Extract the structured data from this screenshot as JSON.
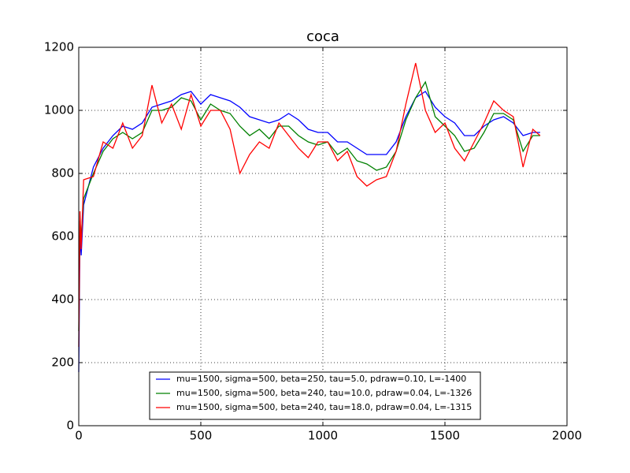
{
  "chart_data": {
    "type": "line",
    "title": "coca",
    "x": [
      0,
      5,
      10,
      20,
      60,
      100,
      140,
      180,
      220,
      260,
      300,
      340,
      380,
      420,
      460,
      500,
      540,
      580,
      620,
      660,
      700,
      740,
      780,
      820,
      860,
      900,
      940,
      980,
      1020,
      1060,
      1100,
      1140,
      1180,
      1220,
      1260,
      1300,
      1340,
      1380,
      1420,
      1460,
      1500,
      1540,
      1580,
      1620,
      1660,
      1700,
      1740,
      1780,
      1820,
      1860,
      1890
    ],
    "series": [
      {
        "name": "mu=1500, sigma=500, beta=250, tau=5.0, pdraw=0.10, L=-1400",
        "color": "#0000ff",
        "values": [
          170,
          600,
          540,
          700,
          820,
          880,
          920,
          950,
          940,
          960,
          1010,
          1020,
          1030,
          1050,
          1060,
          1020,
          1050,
          1040,
          1030,
          1010,
          980,
          970,
          960,
          970,
          990,
          970,
          940,
          930,
          930,
          900,
          900,
          880,
          860,
          860,
          860,
          900,
          980,
          1040,
          1060,
          1010,
          980,
          960,
          920,
          920,
          950,
          970,
          980,
          960,
          920,
          930,
          930
        ]
      },
      {
        "name": "mu=1500, sigma=500, beta=240, tau=10.0, pdraw=0.04, L=-1326",
        "color": "#008000",
        "values": [
          300,
          650,
          600,
          720,
          800,
          870,
          910,
          930,
          910,
          930,
          1000,
          1000,
          1010,
          1040,
          1030,
          970,
          1020,
          1000,
          990,
          950,
          920,
          940,
          910,
          950,
          950,
          920,
          900,
          890,
          900,
          860,
          880,
          840,
          830,
          810,
          820,
          870,
          970,
          1040,
          1090,
          980,
          950,
          920,
          870,
          880,
          930,
          990,
          990,
          970,
          870,
          920,
          920
        ]
      },
      {
        "name": "mu=1500, sigma=500, beta=240, tau=18.0, pdraw=0.04, L=-1315",
        "color": "#ff0000",
        "values": [
          250,
          680,
          560,
          780,
          790,
          900,
          880,
          960,
          880,
          920,
          1080,
          960,
          1020,
          940,
          1050,
          950,
          1000,
          1000,
          940,
          800,
          860,
          900,
          880,
          960,
          920,
          880,
          850,
          900,
          900,
          840,
          870,
          790,
          760,
          780,
          790,
          870,
          1020,
          1150,
          1000,
          930,
          960,
          880,
          840,
          900,
          960,
          1030,
          1000,
          980,
          820,
          940,
          920
        ]
      }
    ],
    "xlim": [
      0,
      2000
    ],
    "xticks": [
      0,
      500,
      1000,
      1500,
      2000
    ],
    "ylim": [
      0,
      1200
    ],
    "yticks": [
      0,
      200,
      400,
      600,
      800,
      1000,
      1200
    ],
    "grid": true,
    "legend": "lower center"
  }
}
